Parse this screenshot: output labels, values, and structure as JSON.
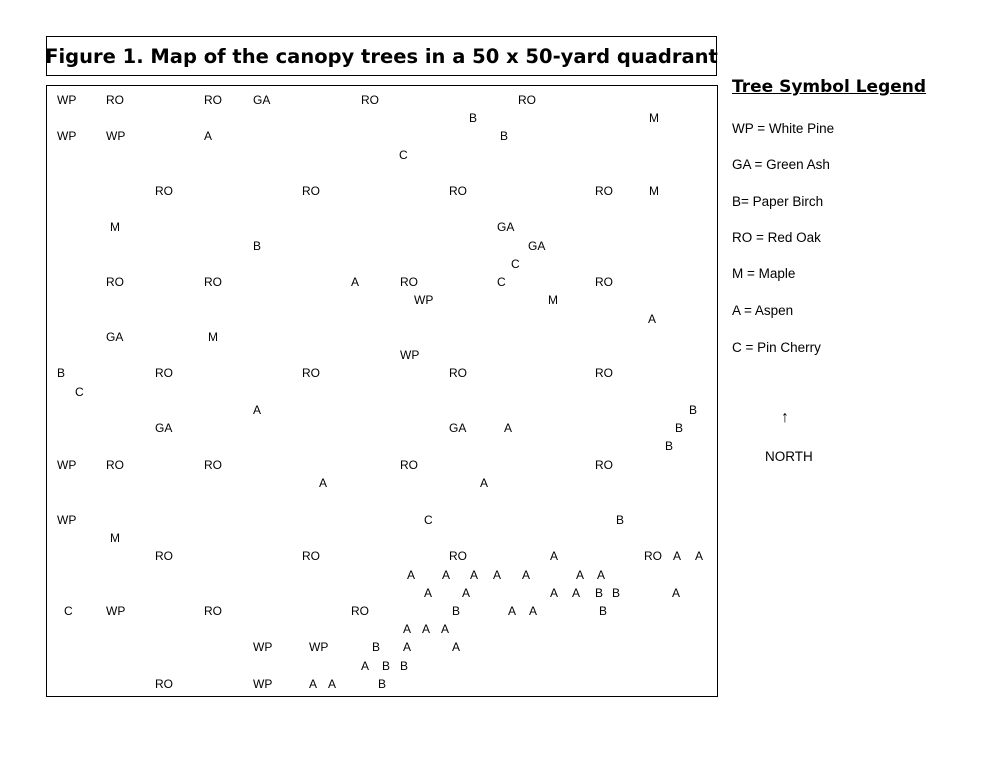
{
  "title": "Figure 1.  Map of the canopy trees in a 50 x 50-yard quadrant",
  "legend": {
    "title": "Tree Symbol Legend",
    "items": [
      "WP = White Pine",
      "GA = Green Ash",
      "B= Paper Birch",
      "RO = Red Oak",
      "M = Maple",
      "A = Aspen",
      "C = Pin Cherry"
    ]
  },
  "north": {
    "arrow": "↑",
    "label": "NORTH"
  },
  "trees": [
    {
      "code": "WP"
    },
    {
      "code": "RO"
    },
    {
      "code": "RO"
    },
    {
      "code": "GA"
    },
    {
      "code": "RO"
    },
    {
      "code": "RO"
    },
    {
      "code": "B"
    },
    {
      "code": "M"
    },
    {
      "code": "WP"
    },
    {
      "code": "WP"
    },
    {
      "code": "A"
    },
    {
      "code": "B"
    },
    {
      "code": "C"
    },
    {
      "code": "RO"
    },
    {
      "code": "RO"
    },
    {
      "code": "RO"
    },
    {
      "code": "RO"
    },
    {
      "code": "M"
    },
    {
      "code": "M"
    },
    {
      "code": "GA"
    },
    {
      "code": "B"
    },
    {
      "code": "GA"
    },
    {
      "code": "C"
    },
    {
      "code": "RO"
    },
    {
      "code": "RO"
    },
    {
      "code": "A"
    },
    {
      "code": "RO"
    },
    {
      "code": "C"
    },
    {
      "code": "RO"
    },
    {
      "code": "WP"
    },
    {
      "code": "M"
    },
    {
      "code": "A"
    },
    {
      "code": "GA"
    },
    {
      "code": "M"
    },
    {
      "code": "WP"
    },
    {
      "code": "B"
    },
    {
      "code": "RO"
    },
    {
      "code": "RO"
    },
    {
      "code": "RO"
    },
    {
      "code": "RO"
    },
    {
      "code": "C"
    },
    {
      "code": "A"
    },
    {
      "code": "B"
    },
    {
      "code": "GA"
    },
    {
      "code": "GA"
    },
    {
      "code": "A"
    },
    {
      "code": "B"
    },
    {
      "code": "B"
    },
    {
      "code": "WP"
    },
    {
      "code": "RO"
    },
    {
      "code": "RO"
    },
    {
      "code": "RO"
    },
    {
      "code": "RO"
    },
    {
      "code": "A"
    },
    {
      "code": "A"
    },
    {
      "code": "WP"
    },
    {
      "code": "C"
    },
    {
      "code": "B"
    },
    {
      "code": "M"
    },
    {
      "code": "RO"
    },
    {
      "code": "RO"
    },
    {
      "code": "RO"
    },
    {
      "code": "A"
    },
    {
      "code": "RO"
    },
    {
      "code": "A"
    },
    {
      "code": "A"
    },
    {
      "code": "A"
    },
    {
      "code": "A"
    },
    {
      "code": "A"
    },
    {
      "code": "A"
    },
    {
      "code": "A"
    },
    {
      "code": "A"
    },
    {
      "code": "A"
    },
    {
      "code": "A"
    },
    {
      "code": "A"
    },
    {
      "code": "A"
    },
    {
      "code": "A"
    },
    {
      "code": "B"
    },
    {
      "code": "B"
    },
    {
      "code": "A"
    },
    {
      "code": "C"
    },
    {
      "code": "WP"
    },
    {
      "code": "RO"
    },
    {
      "code": "RO"
    },
    {
      "code": "B"
    },
    {
      "code": "A"
    },
    {
      "code": "A"
    },
    {
      "code": "B"
    },
    {
      "code": "A"
    },
    {
      "code": "A"
    },
    {
      "code": "A"
    },
    {
      "code": "WP"
    },
    {
      "code": "WP"
    },
    {
      "code": "B"
    },
    {
      "code": "A"
    },
    {
      "code": "A"
    },
    {
      "code": "A"
    },
    {
      "code": "B"
    },
    {
      "code": "B"
    },
    {
      "code": "RO"
    },
    {
      "code": "WP"
    },
    {
      "code": "A"
    },
    {
      "code": "A"
    },
    {
      "code": "B"
    }
  ]
}
